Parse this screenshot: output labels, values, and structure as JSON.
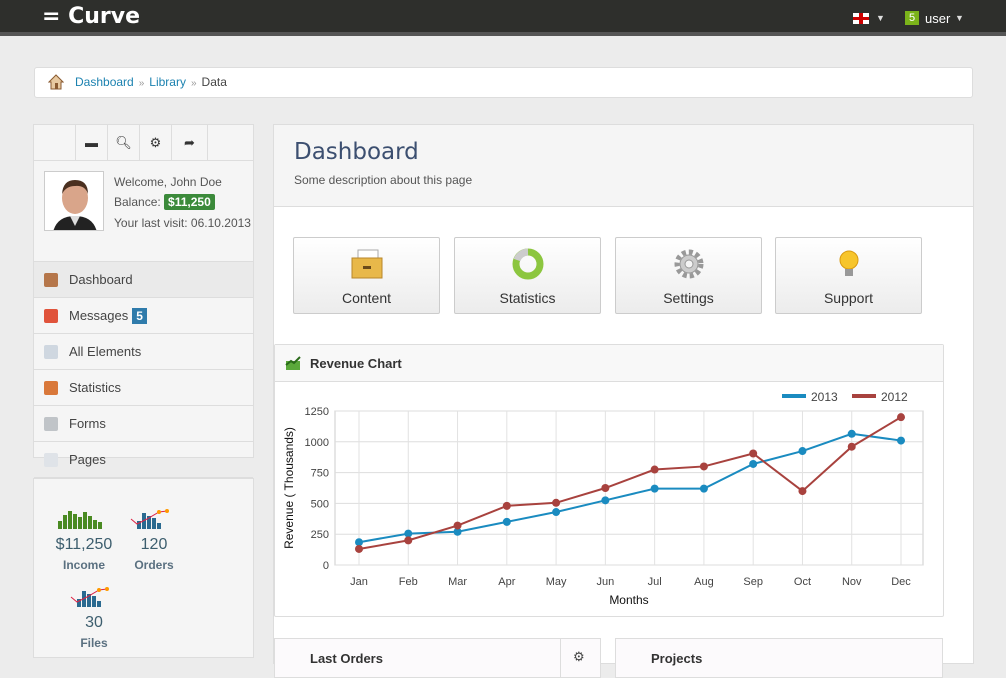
{
  "topbar": {
    "brand": "= Curve",
    "user_badge": "5",
    "user_label": "user"
  },
  "breadcrumb": [
    "Dashboard",
    "Library",
    "Data"
  ],
  "sidebar": {
    "profile": {
      "welcome": "Welcome, John Doe",
      "balance_label": "Balance:",
      "balance": "$11,250",
      "last_visit": "Your last visit: 06.10.2013"
    },
    "items": [
      {
        "label": "Dashboard",
        "icon": "home-icon",
        "color": "#b5764a"
      },
      {
        "label": "Messages",
        "icon": "messages-icon",
        "badge": "5",
        "color": "#e0533b"
      },
      {
        "label": "All Elements",
        "icon": "document-icon",
        "color": "#cfd7e0"
      },
      {
        "label": "Statistics",
        "icon": "bar-chart-icon",
        "color": "#d9783a"
      },
      {
        "label": "Forms",
        "icon": "form-icon",
        "color": "#c0c4c8"
      },
      {
        "label": "Pages",
        "icon": "page-icon",
        "color": "#dfe3e8"
      }
    ],
    "stats": [
      {
        "value": "$11,250",
        "label": "Income"
      },
      {
        "value": "120",
        "label": "Orders"
      },
      {
        "value": "30",
        "label": "Files"
      }
    ]
  },
  "main": {
    "title": "Dashboard",
    "description": "Some description about this page",
    "quick_buttons": [
      "Content",
      "Statistics",
      "Settings",
      "Support"
    ],
    "chart_title": "Revenue Chart",
    "panels": [
      "Last Orders",
      "Projects"
    ]
  },
  "chart_data": {
    "type": "line",
    "categories": [
      "Jan",
      "Feb",
      "Mar",
      "Apr",
      "May",
      "Jun",
      "Jul",
      "Aug",
      "Sep",
      "Oct",
      "Nov",
      "Dec"
    ],
    "series": [
      {
        "name": "2013",
        "color": "#1a8bc0",
        "values": [
          185,
          255,
          270,
          350,
          430,
          525,
          620,
          620,
          820,
          925,
          1065,
          1010
        ]
      },
      {
        "name": "2012",
        "color": "#a8423e",
        "values": [
          130,
          200,
          320,
          480,
          505,
          625,
          775,
          800,
          905,
          600,
          960,
          1200
        ]
      }
    ],
    "xlabel": "Months",
    "ylabel": "Revenue ( Thousands)",
    "ylim": [
      0,
      1250
    ],
    "yticks": [
      "0",
      "250",
      "500",
      "750",
      "1000",
      "1250"
    ],
    "grid": true,
    "legend": "top-right"
  }
}
